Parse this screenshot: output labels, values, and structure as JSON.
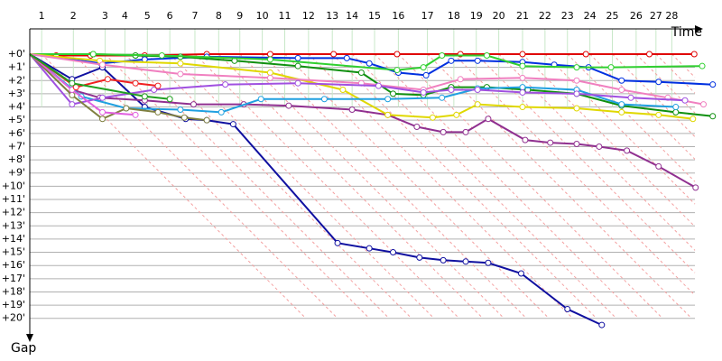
{
  "chart_data": {
    "type": "line",
    "x_label": "Time",
    "y_label": "Gap",
    "xlim": [
      0,
      52.4
    ],
    "ylim": [
      -2,
      22
    ],
    "xticks": [
      {
        "value": 0.9,
        "label": "1"
      },
      {
        "value": 3.3,
        "label": "2"
      },
      {
        "value": 5.7,
        "label": "3"
      },
      {
        "value": 7.2,
        "label": "4"
      },
      {
        "value": 8.9,
        "label": "5"
      },
      {
        "value": 10.6,
        "label": "6"
      },
      {
        "value": 12.5,
        "label": "7"
      },
      {
        "value": 14.3,
        "label": "8"
      },
      {
        "value": 15.9,
        "label": "9"
      },
      {
        "value": 17.6,
        "label": "10"
      },
      {
        "value": 19.3,
        "label": "11"
      },
      {
        "value": 21.1,
        "label": "12"
      },
      {
        "value": 22.9,
        "label": "13"
      },
      {
        "value": 24.4,
        "label": "14"
      },
      {
        "value": 26.1,
        "label": "15"
      },
      {
        "value": 27.9,
        "label": "16"
      },
      {
        "value": 30.1,
        "label": "17"
      },
      {
        "value": 32.1,
        "label": "18"
      },
      {
        "value": 33.8,
        "label": "19"
      },
      {
        "value": 35.5,
        "label": "20"
      },
      {
        "value": 37.3,
        "label": "21"
      },
      {
        "value": 39.0,
        "label": "22"
      },
      {
        "value": 40.7,
        "label": "23"
      },
      {
        "value": 42.4,
        "label": "24"
      },
      {
        "value": 44.1,
        "label": "25"
      },
      {
        "value": 45.9,
        "label": "26"
      },
      {
        "value": 47.4,
        "label": "27"
      },
      {
        "value": 48.6,
        "label": "28"
      }
    ],
    "yticks": [
      {
        "value": 0,
        "label": "+0'"
      },
      {
        "value": 1,
        "label": "+1'"
      },
      {
        "value": 2,
        "label": "+2'"
      },
      {
        "value": 3,
        "label": "+3'"
      },
      {
        "value": 4,
        "label": "+4'"
      },
      {
        "value": 5,
        "label": "+5'"
      },
      {
        "value": 6,
        "label": "+6'"
      },
      {
        "value": 7,
        "label": "+7'"
      },
      {
        "value": 8,
        "label": "+8'"
      },
      {
        "value": 9,
        "label": "+9'"
      },
      {
        "value": 10,
        "label": "+10'"
      },
      {
        "value": 11,
        "label": "+11'"
      },
      {
        "value": 12,
        "label": "+12'"
      },
      {
        "value": 13,
        "label": "+13'"
      },
      {
        "value": 14,
        "label": "+14'"
      },
      {
        "value": 15,
        "label": "+15'"
      },
      {
        "value": 16,
        "label": "+16'"
      },
      {
        "value": 17,
        "label": "+17'"
      },
      {
        "value": 18,
        "label": "+18'"
      },
      {
        "value": 19,
        "label": "+19'"
      },
      {
        "value": 20,
        "label": "+20'"
      }
    ],
    "grid": true,
    "series": [
      {
        "color": "#e00000",
        "x": [
          0,
          2.0,
          4.6,
          8.7,
          13.4,
          18.2,
          23.0,
          27.8,
          32.6,
          37.3,
          42.1,
          46.9,
          50.3
        ],
        "values": [
          0,
          0.1,
          0.1,
          0.1,
          0,
          0,
          0,
          0,
          0,
          0,
          0,
          0,
          0
        ]
      },
      {
        "color": "#1010a0",
        "x": [
          0,
          3.2,
          5.5,
          8.7,
          11.8,
          13.4,
          15.4,
          23.3,
          25.7,
          27.5,
          29.5,
          31.3,
          33.0,
          34.7,
          37.2,
          40.7,
          43.3
        ],
        "values": [
          0,
          1.9,
          1.0,
          4.0,
          4.9,
          5.0,
          5.3,
          14.3,
          14.7,
          15.0,
          15.4,
          15.6,
          15.7,
          15.8,
          16.6,
          19.3,
          20.5
        ]
      },
      {
        "color": "#0030e0",
        "x": [
          0,
          5.4,
          8.7,
          13.4,
          20.3,
          24.0,
          25.7,
          27.9,
          30.0,
          31.9,
          33.9,
          37.3,
          39.7,
          42.3,
          44.8,
          47.6,
          51.7
        ],
        "values": [
          0,
          0.7,
          0.4,
          0.2,
          0.3,
          0.3,
          0.7,
          1.4,
          1.6,
          0.5,
          0.5,
          0.6,
          0.8,
          1.0,
          2.0,
          2.1,
          2.3
        ]
      },
      {
        "color": "#109010",
        "x": [
          0,
          4.8,
          8.0,
          11.4,
          15.5,
          20.3,
          25.1,
          27.5,
          29.8,
          31.9,
          34.6,
          37.7,
          41.4,
          44.8,
          48.9,
          51.7
        ],
        "values": [
          0,
          0,
          0.1,
          0.2,
          0.5,
          0.9,
          1.4,
          3.0,
          3.1,
          2.5,
          2.5,
          2.7,
          3.0,
          3.9,
          4.4,
          4.7
        ]
      },
      {
        "color": "#30d030",
        "x": [
          0,
          4.8,
          10.0,
          18.2,
          27.8,
          29.8,
          31.2,
          34.6,
          37.3,
          41.4,
          44.0,
          50.9
        ],
        "values": [
          0,
          0,
          0.1,
          0.4,
          1.2,
          1.0,
          0.1,
          0.1,
          0.9,
          1.0,
          1.0,
          0.9
        ]
      },
      {
        "color": "#903090",
        "x": [
          0,
          3.2,
          5.3,
          8.7,
          12.4,
          16.2,
          19.6,
          24.4,
          27.1,
          29.3,
          31.3,
          33.0,
          34.7,
          37.5,
          39.4,
          41.4,
          43.1,
          45.2,
          47.6,
          50.4
        ],
        "values": [
          0,
          2.7,
          3.3,
          3.5,
          3.8,
          3.8,
          3.9,
          4.2,
          4.6,
          5.5,
          5.9,
          5.9,
          4.9,
          6.5,
          6.7,
          6.8,
          7.0,
          7.3,
          8.5,
          10.1
        ]
      },
      {
        "color": "#e0d800",
        "x": [
          0,
          5.3,
          11.4,
          18.2,
          23.7,
          27.1,
          30.5,
          32.3,
          33.9,
          37.3,
          41.4,
          44.8,
          47.6,
          50.2
        ],
        "values": [
          0,
          0.5,
          0.7,
          1.4,
          2.7,
          4.6,
          4.8,
          4.6,
          3.8,
          4.0,
          4.1,
          4.4,
          4.6,
          4.9
        ]
      },
      {
        "color": "#f080c0",
        "x": [
          0,
          5.5,
          11.4,
          18.2,
          25.1,
          29.8,
          32.6,
          37.3,
          41.4,
          44.8,
          48.3,
          51.0
        ],
        "values": [
          0,
          0.8,
          1.5,
          1.8,
          2.2,
          2.7,
          1.9,
          1.8,
          2.0,
          2.7,
          3.3,
          3.8
        ]
      },
      {
        "color": "#20a0e0",
        "x": [
          0,
          3.9,
          7.3,
          11.4,
          14.5,
          17.5,
          22.3,
          27.1,
          31.2,
          33.9,
          37.3,
          41.4,
          44.8,
          48.9
        ],
        "values": [
          0,
          3.2,
          4.1,
          4.2,
          4.4,
          3.4,
          3.4,
          3.4,
          3.3,
          2.6,
          2.5,
          2.7,
          3.8,
          4.0
        ]
      },
      {
        "color": "#a050e0",
        "x": [
          0,
          3.2,
          5.5,
          9.4,
          14.8,
          20.3,
          26.4,
          29.8,
          31.9,
          33.9,
          37.3,
          41.4,
          45.5,
          49.6
        ],
        "values": [
          0,
          3.8,
          3.3,
          2.7,
          2.3,
          2.2,
          2.4,
          2.9,
          2.7,
          2.7,
          2.9,
          3.0,
          3.3,
          3.5
        ]
      },
      {
        "color": "#808040",
        "x": [
          0,
          3.2,
          5.5,
          7.3,
          9.7,
          11.7,
          13.4
        ],
        "values": [
          0,
          3.1,
          4.9,
          4.1,
          4.4,
          4.8,
          5.0
        ]
      },
      {
        "color": "#e060e0",
        "x": [
          0,
          3.2,
          5.5,
          8.0
        ],
        "values": [
          0,
          2.7,
          4.4,
          4.6
        ]
      },
      {
        "color": "#f02020",
        "x": [
          0,
          3.5,
          5.9,
          8.0,
          9.7
        ],
        "values": [
          0,
          2.5,
          1.9,
          2.2,
          2.4
        ]
      },
      {
        "color": "#20a020",
        "x": [
          0,
          3.2,
          8.7,
          10.6
        ],
        "values": [
          0,
          2.2,
          3.2,
          3.4
        ]
      }
    ]
  }
}
